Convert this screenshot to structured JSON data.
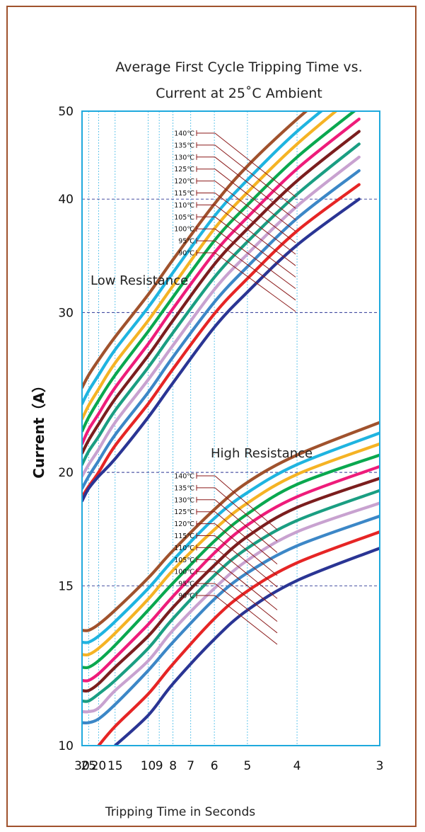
{
  "chart_data": {
    "type": "line",
    "title_line1": "Average First Cycle Tripping Time vs.",
    "title_line2": "Current at 25˚C Ambient",
    "xlabel": "Tripping Time in Seconds",
    "ylabel": "Current（A）",
    "x_scale": "reciprocal",
    "xlim": [
      30,
      3
    ],
    "ylim": [
      10,
      50
    ],
    "y_scale": "log",
    "x_ticks": [
      30,
      25,
      20,
      15,
      10,
      9,
      8,
      7,
      6,
      5,
      4,
      3
    ],
    "y_ticks": [
      10,
      15,
      20,
      30,
      40,
      50
    ],
    "grid": {
      "vertical": true,
      "horizontal_dashed": [
        15,
        20,
        30,
        40
      ]
    },
    "legend_labels": [
      "140℃",
      "135℃",
      "130℃",
      "125℃",
      "120℃",
      "115℃",
      "110℃",
      "105℃",
      "100℃",
      "95℃",
      "90℃"
    ],
    "colors": [
      "#a0522d",
      "#1fb4e0",
      "#f5b324",
      "#0aa84f",
      "#ee1c7a",
      "#7b1e1e",
      "#1a9e82",
      "#c8a2d0",
      "#3c87c7",
      "#e62525",
      "#2a3594"
    ],
    "groups": [
      {
        "name": "Low Resistance",
        "x": [
          30,
          25,
          20,
          15,
          10,
          8,
          6,
          5,
          4,
          3.2
        ],
        "series": [
          {
            "name": "140℃",
            "values": [
              24.8,
              25.6,
              26.6,
              28.2,
              31.4,
              34.3,
              39.5,
              43.5,
              49.0,
              56.0
            ]
          },
          {
            "name": "135℃",
            "values": [
              23.8,
              24.6,
              25.6,
              27.3,
              30.4,
              33.2,
              38.3,
              42.0,
              47.5,
              54.0
            ]
          },
          {
            "name": "130℃",
            "values": [
              22.9,
              23.7,
              24.7,
              26.4,
              29.4,
              32.1,
              37.1,
              40.7,
              46.0,
              52.5
            ]
          },
          {
            "name": "125℃",
            "values": [
              22.2,
              23.0,
              24.0,
              25.6,
              28.6,
              31.2,
              36.0,
              39.4,
              44.5,
              50.5
            ]
          },
          {
            "name": "120℃",
            "values": [
              21.5,
              22.3,
              23.2,
              24.8,
              27.7,
              30.3,
              34.9,
              38.2,
              43.2,
              49.0
            ]
          },
          {
            "name": "115℃",
            "values": [
              21.0,
              21.7,
              22.6,
              24.1,
              26.9,
              29.4,
              33.9,
              37.1,
              41.9,
              47.5
            ]
          },
          {
            "name": "110℃",
            "values": [
              20.4,
              21.1,
              21.9,
              23.4,
              26.1,
              28.5,
              32.8,
              35.9,
              40.5,
              46.0
            ]
          },
          {
            "name": "105℃",
            "values": [
              19.8,
              20.4,
              21.2,
              22.7,
              25.3,
              27.6,
              31.8,
              34.8,
              39.3,
              44.5
            ]
          },
          {
            "name": "100℃",
            "values": [
              19.2,
              19.8,
              20.6,
              22.0,
              24.5,
              26.8,
              30.8,
              33.7,
              38.1,
              43.0
            ]
          },
          {
            "name": "95℃",
            "values": [
              18.8,
              19.3,
              20.0,
              21.4,
              23.8,
              26.0,
              29.9,
              32.7,
              36.9,
              41.5
            ]
          },
          {
            "name": "90℃",
            "values": [
              18.6,
              19.2,
              19.8,
              20.7,
              23.0,
              25.1,
              28.9,
              31.6,
              35.6,
              40.0
            ]
          }
        ]
      },
      {
        "name": "High Resistance",
        "x": [
          30,
          25,
          20,
          15,
          10,
          8,
          6,
          5,
          4,
          3
        ],
        "series": [
          {
            "name": "140℃",
            "values": [
              13.4,
              13.4,
              13.6,
              14.1,
              15.3,
              16.4,
              18.2,
              19.5,
              20.9,
              22.7
            ]
          },
          {
            "name": "135℃",
            "values": [
              13.0,
              13.0,
              13.2,
              13.7,
              14.9,
              16.0,
              17.8,
              19.0,
              20.4,
              22.1
            ]
          },
          {
            "name": "130℃",
            "values": [
              12.6,
              12.6,
              12.8,
              13.3,
              14.5,
              15.6,
              17.3,
              18.5,
              19.9,
              21.5
            ]
          },
          {
            "name": "125℃",
            "values": [
              12.2,
              12.2,
              12.4,
              12.9,
              14.1,
              15.1,
              16.8,
              18.0,
              19.4,
              20.9
            ]
          },
          {
            "name": "120℃",
            "values": [
              11.8,
              11.8,
              12.0,
              12.5,
              13.6,
              14.6,
              16.3,
              17.5,
              18.8,
              20.3
            ]
          },
          {
            "name": "115℃",
            "values": [
              11.5,
              11.5,
              11.7,
              12.2,
              13.2,
              14.2,
              15.8,
              17.0,
              18.3,
              19.7
            ]
          },
          {
            "name": "110℃",
            "values": [
              11.2,
              11.2,
              11.4,
              11.8,
              12.8,
              13.8,
              15.4,
              16.5,
              17.7,
              19.1
            ]
          },
          {
            "name": "105℃",
            "values": [
              10.9,
              10.9,
              11.0,
              11.5,
              12.4,
              13.4,
              14.9,
              16.0,
              17.2,
              18.5
            ]
          },
          {
            "name": "100℃",
            "values": [
              10.6,
              10.6,
              10.7,
              11.1,
              12.1,
              13.0,
              14.5,
              15.5,
              16.6,
              17.9
            ]
          },
          {
            "name": "95℃",
            "values": [
              null,
              null,
              10.0,
              10.5,
              11.4,
              12.3,
              13.8,
              14.8,
              15.9,
              17.2
            ]
          },
          {
            "name": "90℃",
            "values": [
              null,
              null,
              null,
              10.0,
              10.8,
              11.7,
              13.1,
              14.1,
              15.2,
              16.5
            ]
          }
        ]
      }
    ]
  }
}
